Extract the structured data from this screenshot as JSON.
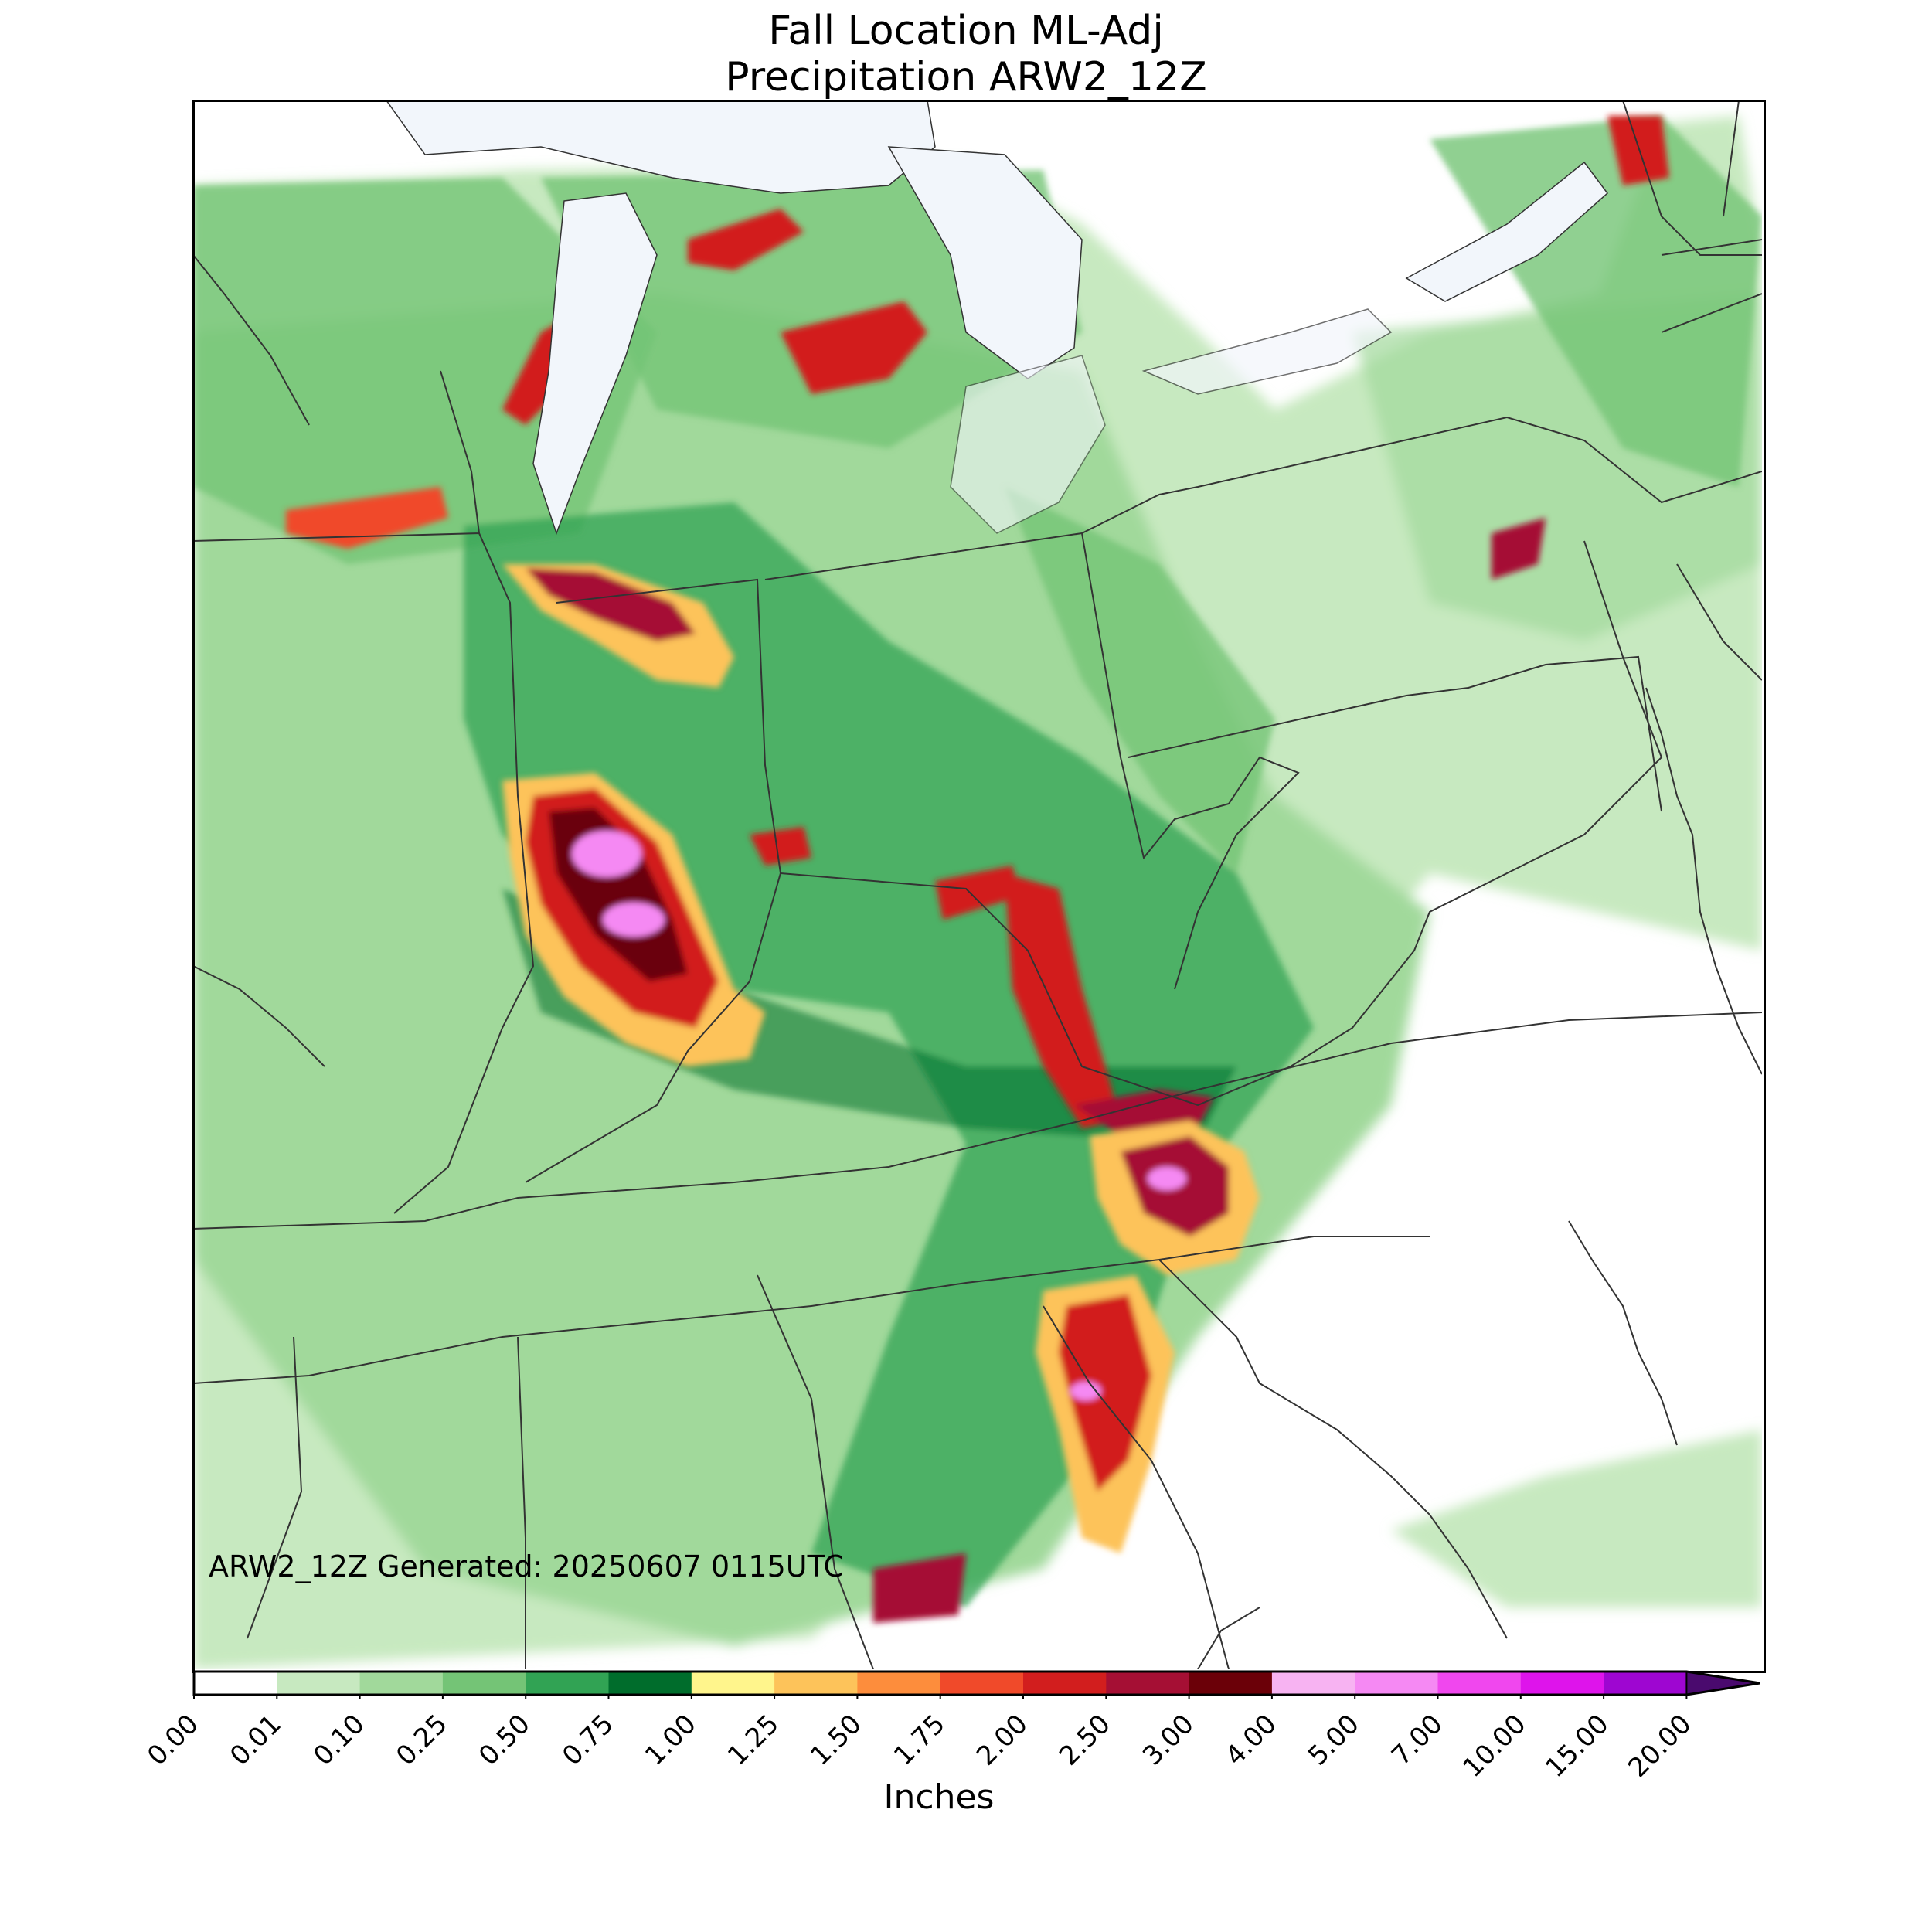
{
  "title": {
    "line1": "Fall Location ML-Adj",
    "line2": "Precipitation ARW2_12Z"
  },
  "generated_label": "ARW2_12Z Generated: 20250607 0115UTC",
  "colorbar": {
    "label": "Inches",
    "ticks": [
      "0.00",
      "0.01",
      "0.10",
      "0.25",
      "0.50",
      "0.75",
      "1.00",
      "1.25",
      "1.50",
      "1.75",
      "2.00",
      "2.50",
      "3.00",
      "4.00",
      "5.00",
      "7.00",
      "10.00",
      "15.00",
      "20.00"
    ],
    "colors": [
      "#ffffff",
      "#c7e9c0",
      "#a1d99b",
      "#74c476",
      "#31a354",
      "#006d2c",
      "#fff58c",
      "#fdc35a",
      "#fd8d3c",
      "#f04a2a",
      "#d21e1e",
      "#a50f34",
      "#6b0008",
      "#f7b3f2",
      "#f589f3",
      "#f047ee",
      "#de14eb",
      "#9e06d1"
    ],
    "extend_color": "#4a0a6e"
  },
  "map": {
    "water_color": "#f2f6fb",
    "border_color": "#333333",
    "precip_max_label": "20.00"
  }
}
